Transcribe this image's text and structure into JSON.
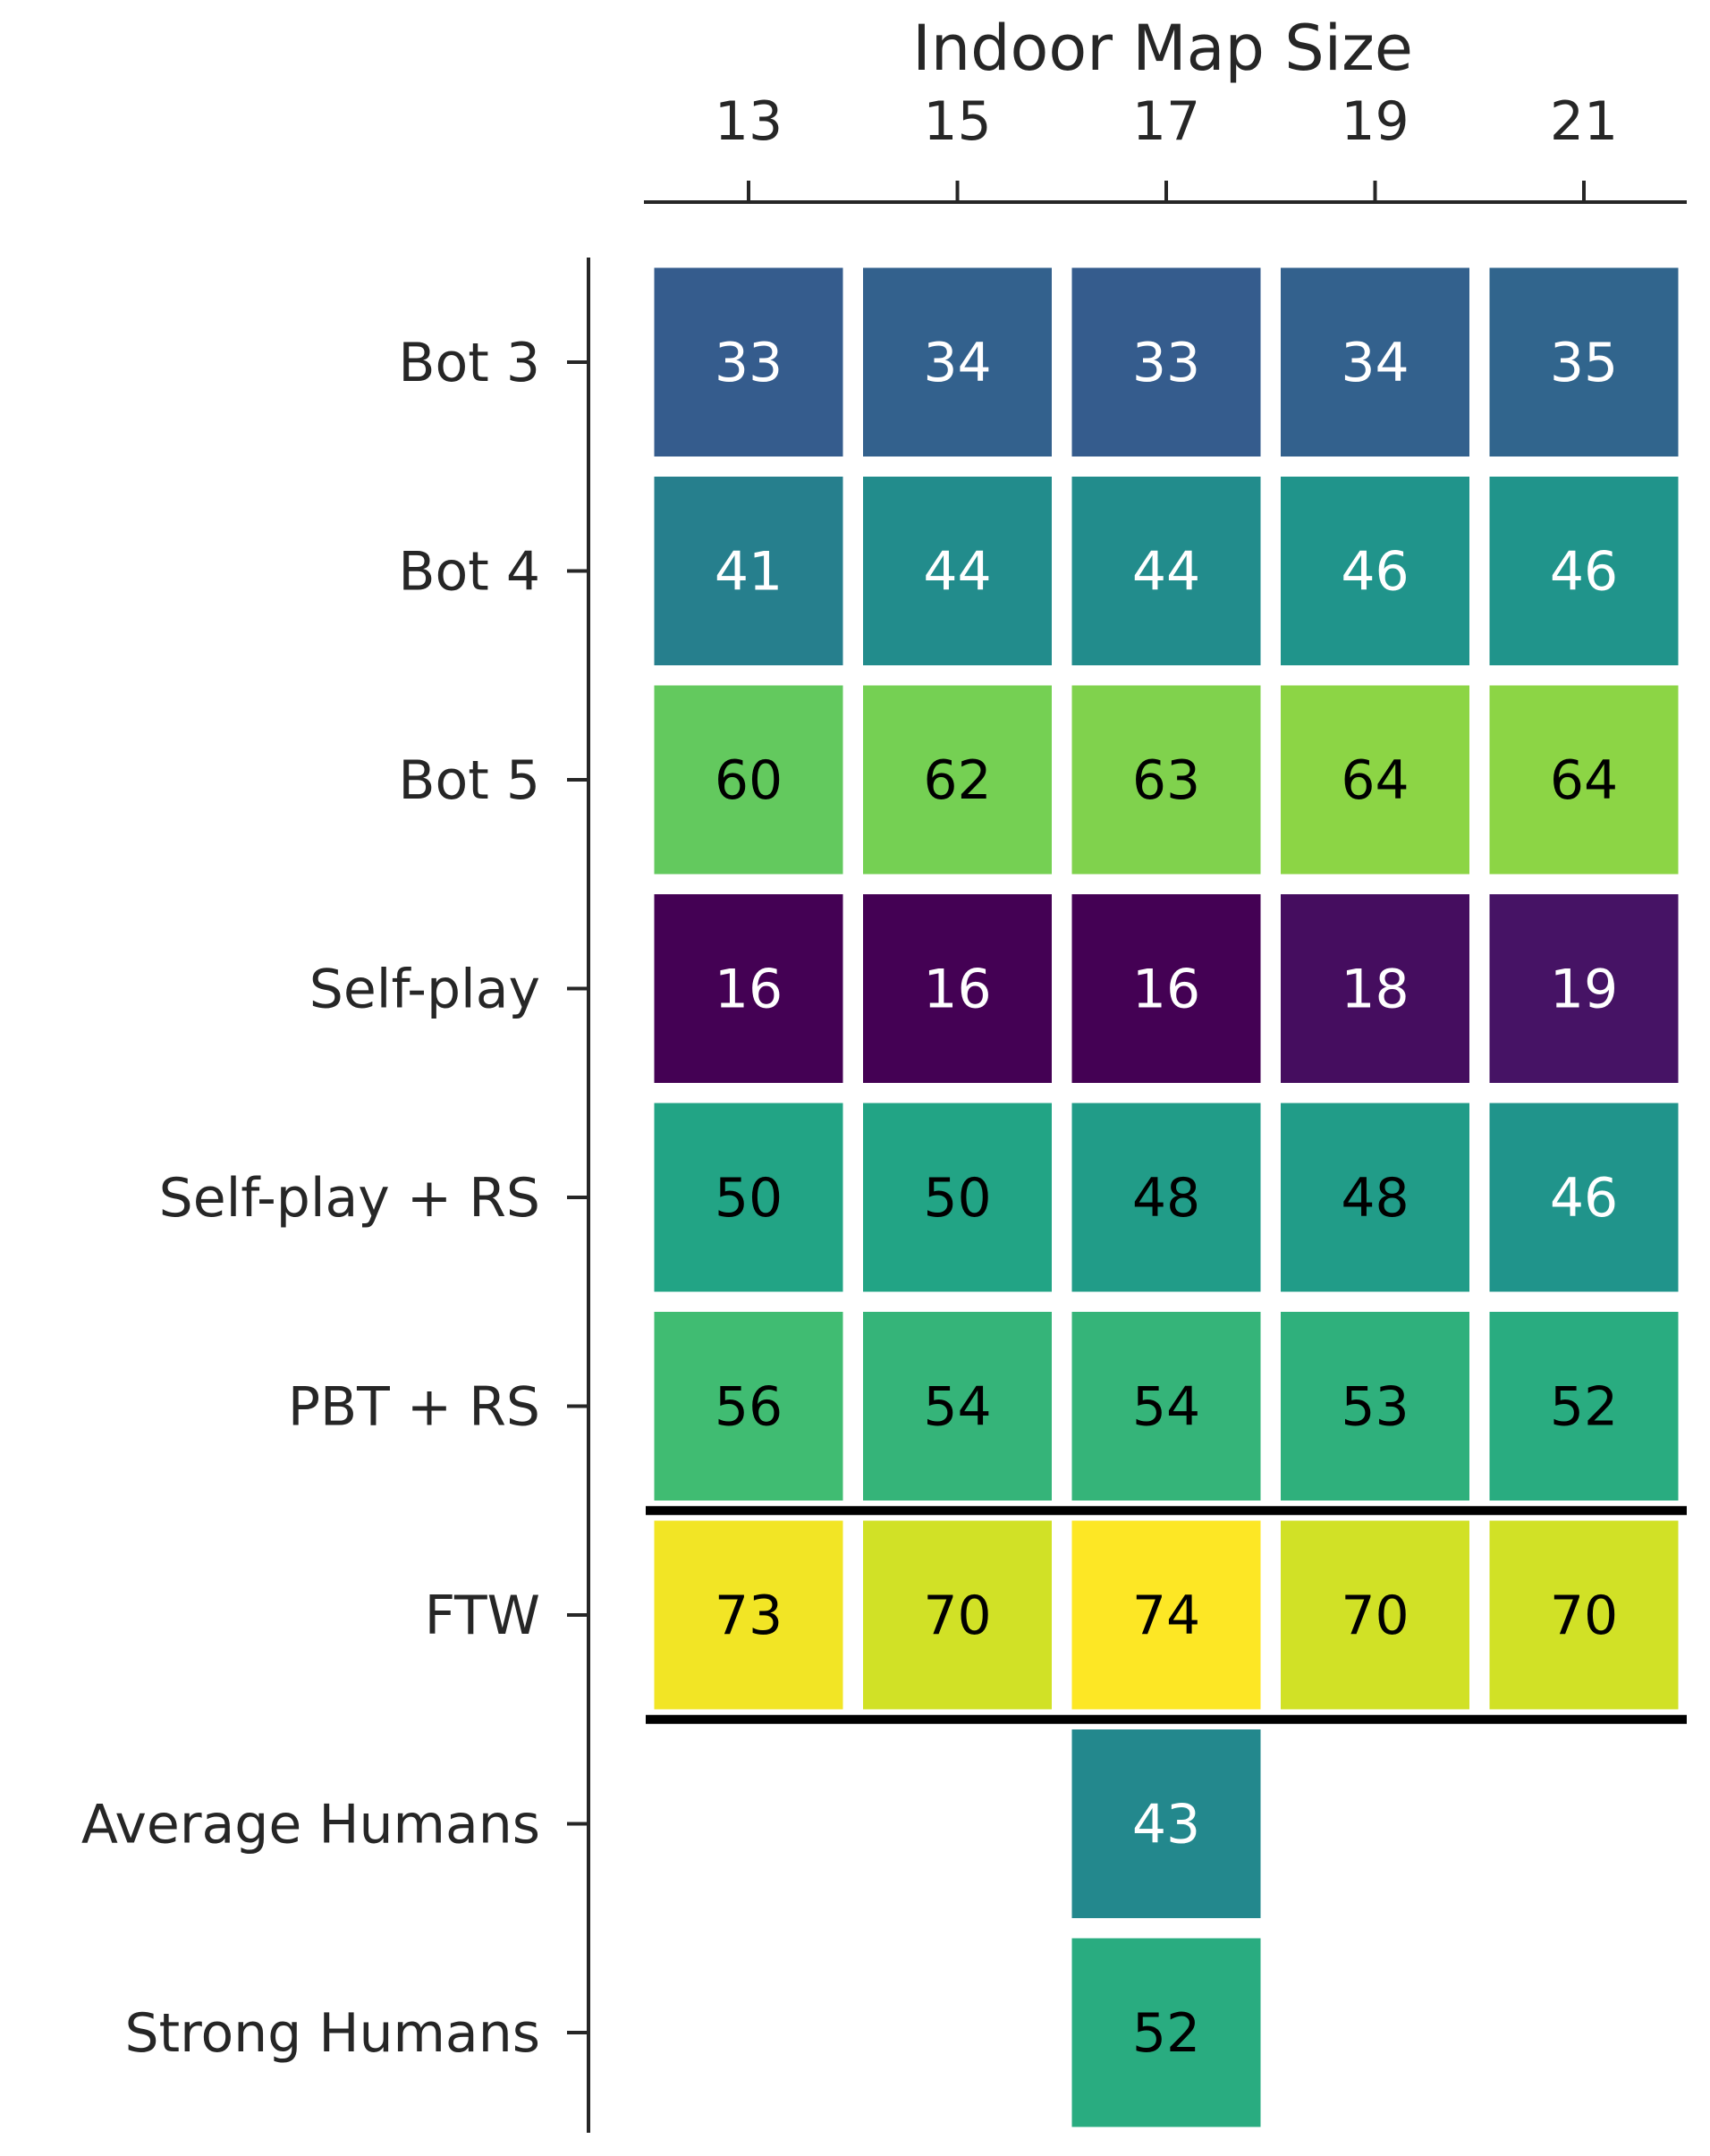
{
  "chart_data": {
    "type": "heatmap",
    "xlabel": "Indoor Map Size",
    "x_categories": [
      "13",
      "15",
      "17",
      "19",
      "21"
    ],
    "y_categories": [
      "Bot 3",
      "Bot 4",
      "Bot 5",
      "Self-play",
      "Self-play + RS",
      "PBT + RS",
      "FTW",
      "Average Humans",
      "Strong Humans"
    ],
    "values": [
      [
        33,
        34,
        33,
        34,
        35
      ],
      [
        41,
        44,
        44,
        46,
        46
      ],
      [
        60,
        62,
        63,
        64,
        64
      ],
      [
        16,
        16,
        16,
        18,
        19
      ],
      [
        50,
        50,
        48,
        48,
        46
      ],
      [
        56,
        54,
        54,
        53,
        52
      ],
      [
        73,
        70,
        74,
        70,
        70
      ],
      [
        null,
        null,
        43,
        null,
        null
      ],
      [
        null,
        null,
        52,
        null,
        null
      ]
    ],
    "colormap": "viridis",
    "color_range": [
      16,
      74
    ],
    "separator_lines_after_rows": [
      "PBT + RS",
      "FTW"
    ],
    "x_axis_position": "top",
    "grid": false,
    "legend": "none"
  }
}
